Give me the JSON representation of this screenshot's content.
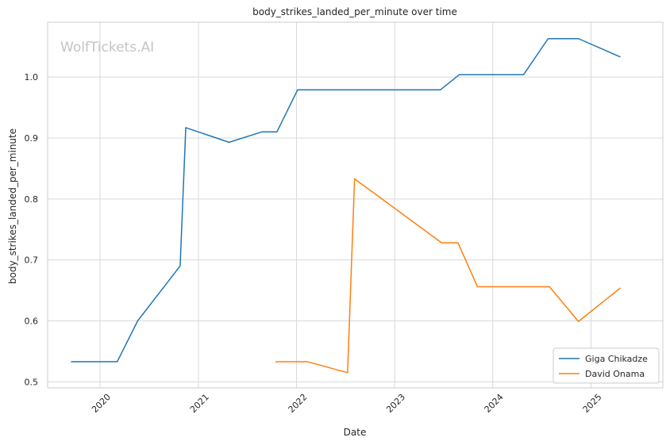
{
  "watermark": "WolfTickets.AI",
  "chart_data": {
    "type": "line",
    "title": "body_strikes_landed_per_minute over time",
    "xlabel": "Date",
    "ylabel": "body_strikes_landed_per_minute",
    "x_ticks": [
      "2020",
      "2021",
      "2022",
      "2023",
      "2024",
      "2025"
    ],
    "y_ticks": [
      "0.5",
      "0.6",
      "0.7",
      "0.8",
      "0.9",
      "1.0"
    ],
    "ylim": [
      0.49,
      1.09
    ],
    "xlim": [
      "2019-06-20",
      "2025-09-25"
    ],
    "grid": true,
    "legend_position": "bottom-right",
    "series": [
      {
        "name": "Giga Chikadze",
        "color": "#1f77b4",
        "points": [
          {
            "x": "2019-09-15",
            "y": 0.533
          },
          {
            "x": "2020-03-05",
            "y": 0.533
          },
          {
            "x": "2020-05-20",
            "y": 0.6
          },
          {
            "x": "2020-10-25",
            "y": 0.69
          },
          {
            "x": "2020-11-15",
            "y": 0.917
          },
          {
            "x": "2021-04-25",
            "y": 0.893
          },
          {
            "x": "2021-08-25",
            "y": 0.91
          },
          {
            "x": "2021-10-20",
            "y": 0.91
          },
          {
            "x": "2022-01-05",
            "y": 0.979
          },
          {
            "x": "2023-06-20",
            "y": 0.979
          },
          {
            "x": "2023-08-30",
            "y": 1.004
          },
          {
            "x": "2024-04-25",
            "y": 1.004
          },
          {
            "x": "2024-07-25",
            "y": 1.063
          },
          {
            "x": "2024-11-15",
            "y": 1.063
          },
          {
            "x": "2025-04-20",
            "y": 1.033
          }
        ]
      },
      {
        "name": "David Onama",
        "color": "#ff7f0e",
        "points": [
          {
            "x": "2021-10-15",
            "y": 0.533
          },
          {
            "x": "2022-02-10",
            "y": 0.533
          },
          {
            "x": "2022-07-10",
            "y": 0.515
          },
          {
            "x": "2022-08-05",
            "y": 0.833
          },
          {
            "x": "2023-06-25",
            "y": 0.728
          },
          {
            "x": "2023-08-25",
            "y": 0.728
          },
          {
            "x": "2023-11-05",
            "y": 0.656
          },
          {
            "x": "2024-07-30",
            "y": 0.656
          },
          {
            "x": "2024-11-15",
            "y": 0.599
          },
          {
            "x": "2025-04-20",
            "y": 0.654
          }
        ]
      }
    ]
  }
}
